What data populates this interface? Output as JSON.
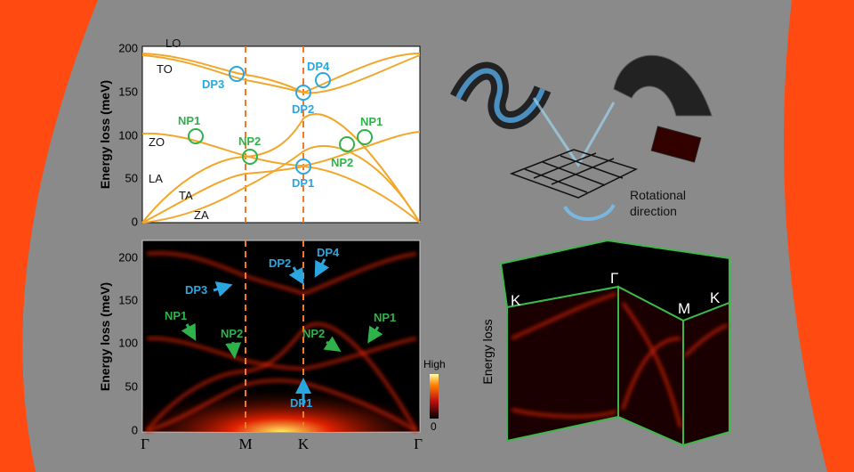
{
  "dispersion": {
    "y_axis_label": "Energy loss (meV)",
    "yticks": [
      "0",
      "50",
      "100",
      "150",
      "200"
    ],
    "branches": [
      "LO",
      "TO",
      "ZO",
      "LA",
      "TA",
      "ZA"
    ],
    "points": [
      "DP3",
      "DP4",
      "DP2",
      "DP1",
      "NP1",
      "NP2",
      "NP2",
      "NP1"
    ]
  },
  "eels_map": {
    "y_axis_label": "Energy loss (meV)",
    "yticks": [
      "0",
      "50",
      "100",
      "150",
      "200"
    ],
    "xticks": [
      "Γ",
      "M",
      "K",
      "Γ"
    ],
    "points": [
      "DP2",
      "DP4",
      "DP3",
      "NP1",
      "NP2",
      "NP2",
      "NP1",
      "DP1"
    ],
    "colorbar": [
      "High",
      "0"
    ]
  },
  "schematic": {
    "label": [
      "Rotational",
      "direction"
    ]
  },
  "volume": {
    "axis_label": "Energy loss",
    "points": [
      "K",
      "Γ",
      "M",
      "K"
    ]
  }
}
